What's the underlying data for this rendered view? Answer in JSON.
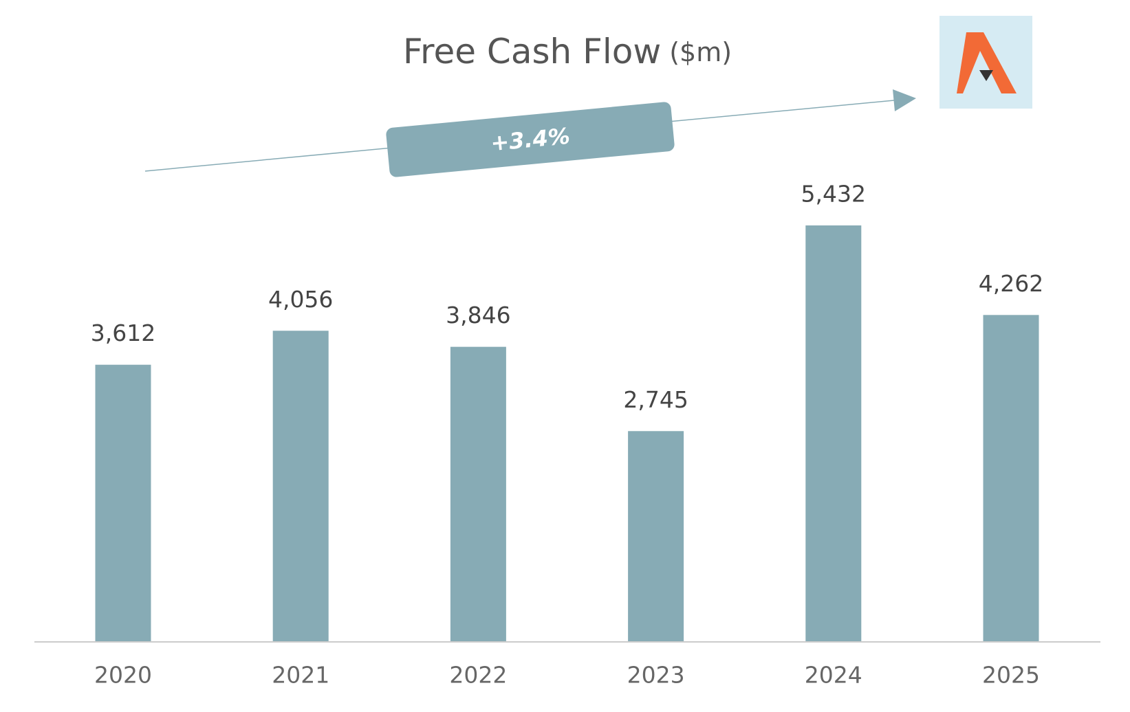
{
  "chart_data": {
    "type": "bar",
    "title": "Free Cash Flow",
    "subtitle": "($m)",
    "annotation": "+3.4%",
    "categories": [
      "2020",
      "2021",
      "2022",
      "2023",
      "2024",
      "2025"
    ],
    "values": [
      3612,
      4056,
      3846,
      2745,
      5432,
      4262
    ],
    "value_labels": [
      "3,612",
      "4,056",
      "3,846",
      "2,745",
      "5,432",
      "4,262"
    ],
    "color": "#87abb5"
  }
}
